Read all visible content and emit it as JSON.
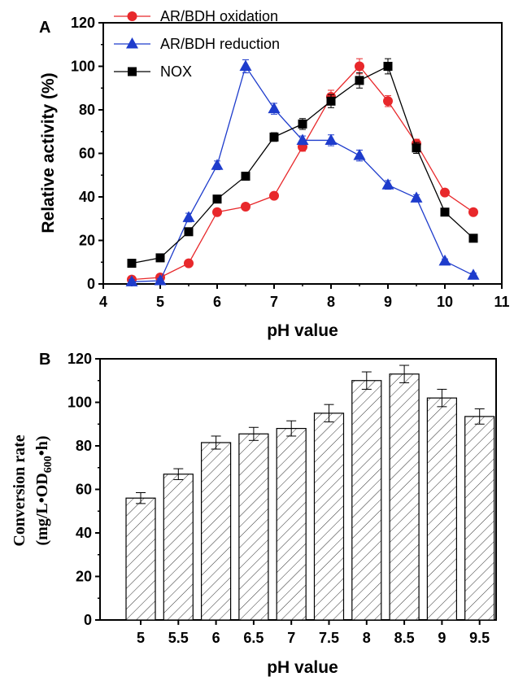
{
  "chart_data": [
    {
      "panel_label": "A",
      "type": "line",
      "xlabel": "pH value",
      "ylabel": "Relative activity (%)",
      "xlim": [
        4,
        11
      ],
      "ylim": [
        0,
        120
      ],
      "xticks": [
        4,
        5,
        6,
        7,
        8,
        9,
        10,
        11
      ],
      "yticks": [
        0,
        20,
        40,
        60,
        80,
        100,
        120
      ],
      "legend": "top-left",
      "grid": false,
      "series": [
        {
          "name": "AR/BDH oxidation",
          "marker": "circle",
          "color": "#e8282b",
          "x": [
            4.5,
            5,
            5.5,
            6,
            6.5,
            7,
            7.5,
            8,
            8.5,
            9,
            9.5,
            10,
            10.5
          ],
          "y": [
            2,
            3,
            9.5,
            33,
            35.5,
            40.5,
            63,
            86,
            100,
            84,
            64.5,
            42,
            33
          ],
          "err": [
            1,
            1,
            1.5,
            1.5,
            1.5,
            1.5,
            2,
            3,
            3.5,
            2.5,
            2,
            1.5,
            1.5
          ]
        },
        {
          "name": "AR/BDH reduction",
          "marker": "triangle",
          "color": "#1e3ccc",
          "x": [
            4.5,
            5,
            5.5,
            6,
            6.5,
            7,
            7.5,
            8,
            8.5,
            9,
            9.5,
            10,
            10.5
          ],
          "y": [
            1,
            1.5,
            30.5,
            54.5,
            100,
            80.5,
            66,
            66,
            59,
            45.5,
            39.5,
            10.5,
            4
          ],
          "err": [
            1,
            1,
            2,
            2,
            3,
            2.5,
            2,
            2.5,
            2.5,
            2,
            1.5,
            1,
            1
          ]
        },
        {
          "name": "NOX",
          "marker": "square",
          "color": "#000000",
          "x": [
            4.5,
            5,
            5.5,
            6,
            6.5,
            7,
            7.5,
            8,
            8.5,
            9,
            9.5,
            10,
            10.5
          ],
          "y": [
            9.5,
            12,
            24,
            39,
            49.5,
            67.5,
            73.5,
            84,
            93.5,
            100,
            62.5,
            33,
            21
          ],
          "err": [
            1,
            1,
            1.5,
            1.5,
            1.5,
            2,
            2.5,
            3,
            3.5,
            3.5,
            2.5,
            1.5,
            1.5
          ]
        }
      ]
    },
    {
      "panel_label": "B",
      "type": "bar",
      "xlabel": "pH value",
      "ylabel_line1": "Conversion rate",
      "ylabel_line2_prefix": "(mg/L•OD",
      "ylabel_line2_sub": "600",
      "ylabel_line2_suffix": "•h)",
      "ylim": [
        0,
        120
      ],
      "yticks": [
        0,
        20,
        40,
        60,
        80,
        100,
        120
      ],
      "categories": [
        "5",
        "5.5",
        "6",
        "6.5",
        "7",
        "7.5",
        "8",
        "8.5",
        "9",
        "9.5"
      ],
      "values": [
        56,
        67,
        81.5,
        85.5,
        88,
        95,
        110,
        113,
        102,
        93.5
      ],
      "err": [
        2.5,
        2.5,
        3,
        3,
        3.5,
        4,
        4,
        4,
        4,
        3.5
      ],
      "fill": "hatched"
    }
  ]
}
